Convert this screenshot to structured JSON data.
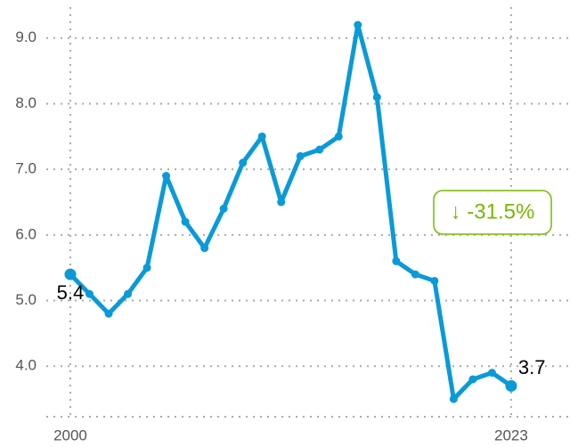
{
  "chart_data": {
    "type": "line",
    "x": [
      2000,
      2001,
      2002,
      2003,
      2004,
      2005,
      2006,
      2007,
      2008,
      2009,
      2010,
      2011,
      2012,
      2013,
      2014,
      2015,
      2016,
      2017,
      2018,
      2019,
      2020,
      2021,
      2022,
      2023
    ],
    "values": [
      5.4,
      5.1,
      4.8,
      5.1,
      5.5,
      6.9,
      6.2,
      5.8,
      6.4,
      7.1,
      7.5,
      6.5,
      7.2,
      7.3,
      7.5,
      9.2,
      8.1,
      5.6,
      5.4,
      5.3,
      3.5,
      3.8,
      3.9,
      3.7
    ],
    "color": "#0a9ad7",
    "xlim": [
      1996.33,
      2026.07
    ],
    "xticks": [
      2000,
      2023
    ],
    "ylim": [
      3.23,
      9.58
    ],
    "yticks": [
      {
        "value": 4,
        "label": "4.0"
      },
      {
        "value": 5,
        "label": "5.0"
      },
      {
        "value": 6,
        "label": "6.0"
      },
      {
        "value": 7,
        "label": "7.0"
      },
      {
        "value": 8,
        "label": "8.0"
      },
      {
        "value": 9,
        "label": "9.0"
      }
    ],
    "grid": true,
    "annotation": "↓ -31.5%",
    "annotation_color": "#76b900"
  }
}
